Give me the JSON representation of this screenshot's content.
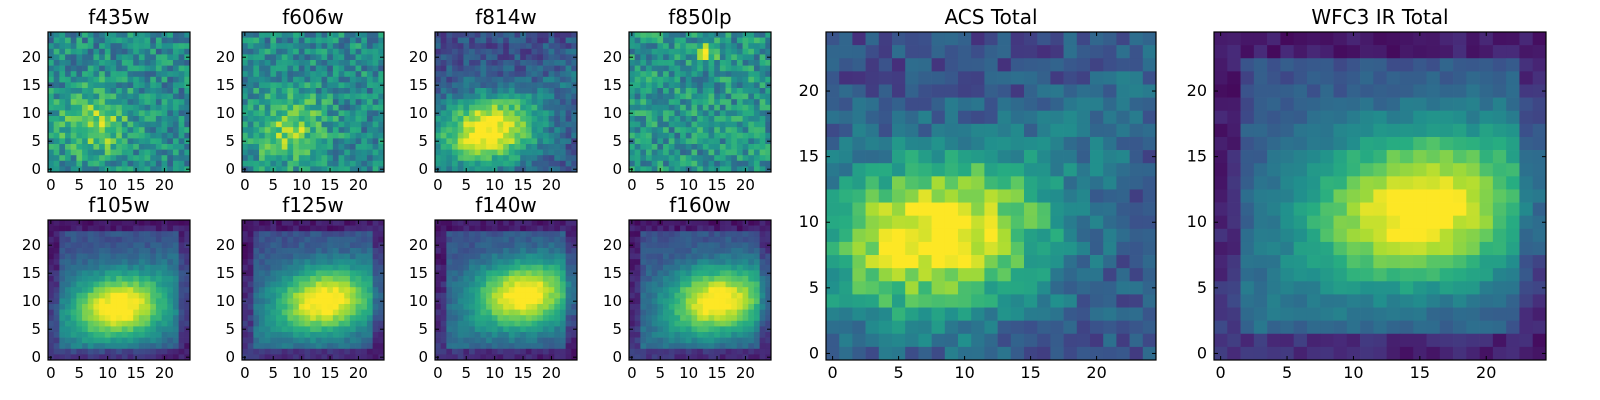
{
  "figure": {
    "background": "#ffffff",
    "colormap": "viridis"
  },
  "chart_data": [
    {
      "type": "heatmap",
      "title": "f435w",
      "colormap": "viridis",
      "grid_size": 25,
      "x": {
        "ticks": [
          0,
          5,
          10,
          15,
          20
        ],
        "range": [
          0,
          24
        ]
      },
      "y": {
        "ticks": [
          0,
          5,
          10,
          15,
          20
        ],
        "range": [
          0,
          24
        ]
      },
      "peak": [
        8,
        8
      ],
      "shape": "diffuse",
      "noise": "high",
      "grid": false
    },
    {
      "type": "heatmap",
      "title": "f606w",
      "colormap": "viridis",
      "grid_size": 25,
      "x": {
        "ticks": [
          0,
          5,
          10,
          15,
          20
        ],
        "range": [
          0,
          24
        ]
      },
      "y": {
        "ticks": [
          0,
          5,
          10,
          15,
          20
        ],
        "range": [
          0,
          24
        ]
      },
      "peak": [
        8,
        7
      ],
      "shape": "diffuse",
      "noise": "high",
      "grid": false
    },
    {
      "type": "heatmap",
      "title": "f814w",
      "colormap": "viridis",
      "grid_size": 25,
      "x": {
        "ticks": [
          0,
          5,
          10,
          15,
          20
        ],
        "range": [
          0,
          24
        ]
      },
      "y": {
        "ticks": [
          0,
          5,
          10,
          15,
          20
        ],
        "range": [
          0,
          24
        ]
      },
      "peak": [
        9,
        7
      ],
      "shape": "band",
      "noise": "medium",
      "grid": false
    },
    {
      "type": "heatmap",
      "title": "f850lp",
      "colormap": "viridis",
      "grid_size": 25,
      "x": {
        "ticks": [
          0,
          5,
          10,
          15,
          20
        ],
        "range": [
          0,
          24
        ]
      },
      "y": {
        "ticks": [
          0,
          5,
          10,
          15,
          20
        ],
        "range": [
          0,
          24
        ]
      },
      "peak": [
        13,
        21
      ],
      "shape": "point",
      "noise": "high",
      "grid": false
    },
    {
      "type": "heatmap",
      "title": "f105w",
      "colormap": "viridis",
      "grid_size": 25,
      "x": {
        "ticks": [
          0,
          5,
          10,
          15,
          20
        ],
        "range": [
          0,
          24
        ]
      },
      "y": {
        "ticks": [
          0,
          5,
          10,
          15,
          20
        ],
        "range": [
          0,
          24
        ]
      },
      "peak": [
        12,
        9
      ],
      "shape": "band",
      "noise": "low",
      "grid": false
    },
    {
      "type": "heatmap",
      "title": "f125w",
      "colormap": "viridis",
      "grid_size": 25,
      "x": {
        "ticks": [
          0,
          5,
          10,
          15,
          20
        ],
        "range": [
          0,
          24
        ]
      },
      "y": {
        "ticks": [
          0,
          5,
          10,
          15,
          20
        ],
        "range": [
          0,
          24
        ]
      },
      "peak": [
        14,
        10
      ],
      "shape": "band",
      "noise": "low",
      "grid": false
    },
    {
      "type": "heatmap",
      "title": "f140w",
      "colormap": "viridis",
      "grid_size": 25,
      "x": {
        "ticks": [
          0,
          5,
          10,
          15,
          20
        ],
        "range": [
          0,
          24
        ]
      },
      "y": {
        "ticks": [
          0,
          5,
          10,
          15,
          20
        ],
        "range": [
          0,
          24
        ]
      },
      "peak": [
        15,
        11
      ],
      "shape": "band",
      "noise": "low",
      "grid": false
    },
    {
      "type": "heatmap",
      "title": "f160w",
      "colormap": "viridis",
      "grid_size": 25,
      "x": {
        "ticks": [
          0,
          5,
          10,
          15,
          20
        ],
        "range": [
          0,
          24
        ]
      },
      "y": {
        "ticks": [
          0,
          5,
          10,
          15,
          20
        ],
        "range": [
          0,
          24
        ]
      },
      "peak": [
        15,
        10
      ],
      "shape": "band",
      "noise": "low",
      "grid": false
    },
    {
      "type": "heatmap",
      "title": "ACS Total",
      "colormap": "viridis",
      "grid_size": 25,
      "x": {
        "ticks": [
          0,
          5,
          10,
          15,
          20
        ],
        "range": [
          0,
          24
        ]
      },
      "y": {
        "ticks": [
          0,
          5,
          10,
          15,
          20
        ],
        "range": [
          0,
          24
        ]
      },
      "peak": [
        8,
        9
      ],
      "shape": "band",
      "noise": "medium",
      "grid": false
    },
    {
      "type": "heatmap",
      "title": "WFC3 IR Total",
      "colormap": "viridis",
      "grid_size": 25,
      "x": {
        "ticks": [
          0,
          5,
          10,
          15,
          20
        ],
        "range": [
          0,
          24
        ]
      },
      "y": {
        "ticks": [
          0,
          5,
          10,
          15,
          20
        ],
        "range": [
          0,
          24
        ]
      },
      "peak": [
        15,
        11
      ],
      "shape": "band",
      "noise": "low",
      "grid": false
    }
  ]
}
